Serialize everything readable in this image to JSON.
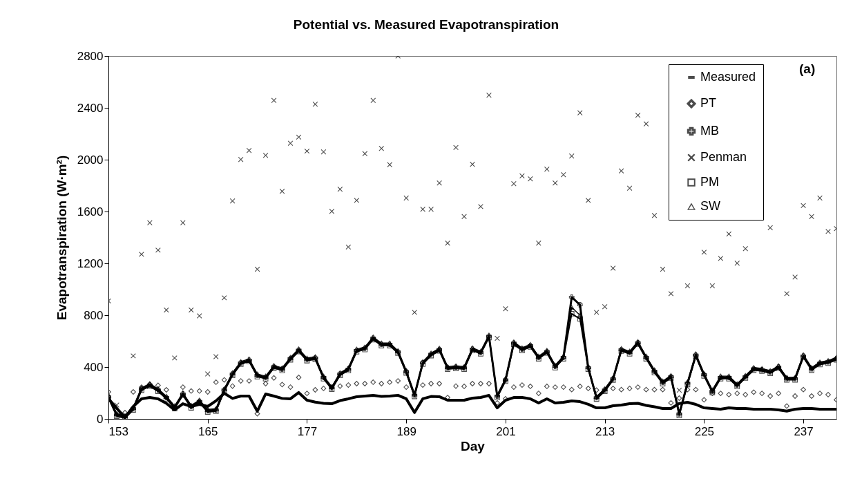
{
  "chart_data": {
    "type": "line",
    "title": "Potential vs. Measured Evapotranspiration",
    "xlabel": "Day",
    "ylabel": "Evapotranspiration (W·m²)",
    "annotations": [
      "(a)"
    ],
    "x": [
      153,
      154,
      155,
      156,
      157,
      158,
      159,
      160,
      161,
      162,
      163,
      164,
      165,
      166,
      167,
      168,
      169,
      170,
      171,
      172,
      173,
      174,
      175,
      176,
      177,
      178,
      179,
      180,
      181,
      182,
      183,
      184,
      185,
      186,
      187,
      188,
      189,
      190,
      191,
      192,
      193,
      194,
      195,
      196,
      197,
      198,
      199,
      200,
      201,
      202,
      203,
      204,
      205,
      206,
      207,
      208,
      209,
      210,
      211,
      212,
      213,
      214,
      215,
      216,
      217,
      218,
      219,
      220,
      221,
      222,
      223,
      224,
      225,
      226,
      227,
      228,
      229,
      230,
      231,
      232,
      233,
      234,
      235,
      236,
      237,
      238,
      239,
      240,
      241
    ],
    "xlim": [
      153,
      241
    ],
    "xticks": [
      153,
      165,
      177,
      189,
      201,
      213,
      225,
      237
    ],
    "ylim": [
      0,
      2800
    ],
    "yticks": [
      0,
      400,
      800,
      1200,
      1600,
      2000,
      2400,
      2800
    ],
    "legend": "top right",
    "line_style": "solid",
    "series": [
      {
        "name": "Measured",
        "marker": "none",
        "color": "#000000",
        "values": [
          155,
          82,
          10,
          96,
          155,
          165,
          155,
          120,
          69,
          117,
          96,
          112,
          96,
          139,
          197,
          158,
          176,
          176,
          59,
          192,
          176,
          158,
          155,
          203,
          144,
          129,
          120,
          117,
          141,
          155,
          171,
          176,
          181,
          173,
          176,
          182,
          155,
          49,
          155,
          173,
          171,
          144,
          144,
          144,
          160,
          165,
          181,
          85,
          144,
          165,
          165,
          155,
          123,
          155,
          123,
          128,
          139,
          133,
          113,
          85,
          85,
          101,
          107,
          117,
          120,
          104,
          93,
          80,
          80,
          119,
          128,
          112,
          85,
          80,
          75,
          85,
          80,
          80,
          75,
          75,
          75,
          69,
          60,
          75,
          80,
          80,
          75,
          75,
          75
        ]
      },
      {
        "name": "PT",
        "type": "scatter",
        "marker": "diamond",
        "color": "#000000",
        "values": [
          208,
          null,
          48,
          208,
          245,
          268,
          259,
          224,
          null,
          245,
          215,
          215,
          208,
          283,
          301,
          253,
          293,
          293,
          40,
          272,
          316,
          265,
          245,
          320,
          197,
          224,
          235,
          245,
          253,
          261,
          272,
          272,
          283,
          272,
          283,
          293,
          245,
          null,
          261,
          272,
          272,
          165,
          253,
          251,
          272,
          272,
          272,
          123,
          155,
          245,
          261,
          251,
          197,
          251,
          245,
          245,
          226,
          251,
          235,
          222,
          null,
          235,
          226,
          235,
          245,
          226,
          226,
          226,
          123,
          160,
          226,
          226,
          147,
          197,
          197,
          187,
          197,
          187,
          206,
          197,
          176,
          197,
          99,
          176,
          226,
          176,
          197,
          187,
          147
        ]
      },
      {
        "name": "MB",
        "marker": "cross",
        "color": "#000000",
        "values": [
          170,
          31,
          15,
          79,
          231,
          261,
          223,
          165,
          90,
          192,
          95,
          135,
          63,
          69,
          223,
          346,
          432,
          453,
          336,
          320,
          402,
          384,
          465,
          530,
          459,
          470,
          320,
          239,
          346,
          384,
          528,
          545,
          622,
          575,
          575,
          517,
          364,
          183,
          432,
          498,
          535,
          394,
          399,
          394,
          538,
          512,
          637,
          176,
          301,
          584,
          538,
          565,
          474,
          519,
          405,
          474,
          939,
          880,
          394,
          163,
          223,
          309,
          533,
          512,
          587,
          474,
          368,
          282,
          325,
          38,
          275,
          492,
          341,
          213,
          320,
          320,
          261,
          325,
          386,
          379,
          362,
          400,
          311,
          311,
          485,
          386,
          429,
          440,
          465
        ]
      },
      {
        "name": "Penman",
        "type": "scatter",
        "marker": "cross",
        "color": "#000000",
        "values": [
          910,
          107,
          null,
          486,
          1270,
          1513,
          1302,
          840,
          470,
          1513,
          840,
          795,
          347,
          480,
          934,
          1681,
          2001,
          2071,
          1155,
          2033,
          2457,
          1756,
          2127,
          2174,
          2066,
          2428,
          2060,
          1601,
          1772,
          1326,
          1686,
          2047,
          2457,
          2087,
          1961,
          2800,
          1704,
          822,
          1617,
          1617,
          1820,
          1356,
          2094,
          1561,
          1964,
          1638,
          2497,
          621,
          849,
          1815,
          1875,
          1852,
          1356,
          1927,
          1820,
          1884,
          2028,
          2361,
          1686,
          822,
          865,
          1163,
          1913,
          1780,
          2343,
          2276,
          1569,
          1155,
          966,
          221,
          1027,
          null,
          1286,
          1027,
          1238,
          1427,
          1201,
          1313,
          null,
          null,
          1475,
          null,
          966,
          1094,
          1646,
          1561,
          1704,
          1446,
          1468
        ]
      },
      {
        "name": "PM",
        "marker": "square",
        "color": "#000000",
        "values": [
          160,
          21,
          5,
          69,
          221,
          251,
          213,
          155,
          80,
          182,
          85,
          125,
          53,
          59,
          213,
          336,
          422,
          443,
          326,
          310,
          392,
          374,
          455,
          520,
          449,
          460,
          310,
          229,
          336,
          374,
          518,
          535,
          612,
          565,
          565,
          507,
          354,
          173,
          422,
          488,
          525,
          384,
          389,
          384,
          528,
          502,
          627,
          166,
          291,
          574,
          528,
          555,
          464,
          509,
          395,
          464,
          811,
          771,
          384,
          153,
          213,
          299,
          523,
          502,
          577,
          464,
          358,
          272,
          315,
          28,
          265,
          482,
          331,
          203,
          310,
          310,
          251,
          315,
          376,
          369,
          352,
          390,
          301,
          301,
          475,
          376,
          419,
          430,
          455
        ]
      },
      {
        "name": "SW",
        "marker": "triangle",
        "color": "#000000",
        "values": [
          180,
          41,
          25,
          89,
          241,
          271,
          233,
          175,
          100,
          202,
          105,
          145,
          73,
          79,
          233,
          356,
          442,
          463,
          346,
          330,
          412,
          394,
          475,
          540,
          469,
          480,
          330,
          249,
          356,
          394,
          538,
          555,
          632,
          585,
          585,
          527,
          374,
          193,
          442,
          508,
          545,
          404,
          409,
          404,
          548,
          522,
          647,
          186,
          311,
          594,
          548,
          575,
          484,
          529,
          415,
          484,
          860,
          800,
          404,
          173,
          233,
          319,
          543,
          522,
          597,
          484,
          378,
          292,
          335,
          48,
          285,
          502,
          351,
          223,
          330,
          330,
          271,
          335,
          396,
          389,
          372,
          410,
          321,
          321,
          495,
          396,
          439,
          450,
          475
        ]
      }
    ]
  }
}
